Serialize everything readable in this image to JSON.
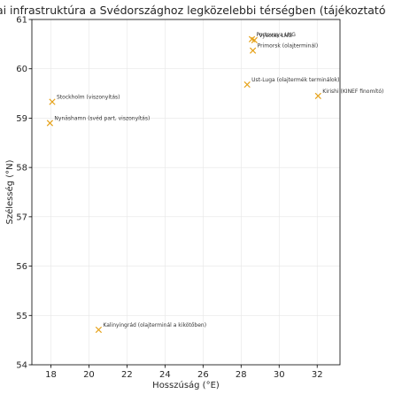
{
  "chart_data": {
    "type": "scatter",
    "title": "giai infrastruktúra a Svédországhoz legközelebbi térségben (tájékoztató",
    "xlabel": "Hosszúság (°E)",
    "ylabel": "Szélesség (°N)",
    "xlim": [
      17.0,
      33.2
    ],
    "ylim": [
      54.0,
      61.0
    ],
    "xticks": [
      18,
      20,
      22,
      24,
      26,
      28,
      30,
      32
    ],
    "yticks": [
      54,
      55,
      56,
      57,
      58,
      59,
      60,
      61
    ],
    "grid": true,
    "marker": "x",
    "marker_color": "#e6a21a",
    "points": [
      {
        "x": 28.7,
        "y": 60.58,
        "label": "Vysotsk LNG"
      },
      {
        "x": 28.57,
        "y": 60.6,
        "label": "Portovaya LNG"
      },
      {
        "x": 28.62,
        "y": 60.37,
        "label": "Primorsk (olajterminál)"
      },
      {
        "x": 28.32,
        "y": 59.68,
        "label": "Ust-Luga (olajtermék terminálok)"
      },
      {
        "x": 32.05,
        "y": 59.45,
        "label": "Kirishi (KINEF finomító)"
      },
      {
        "x": 18.07,
        "y": 59.33,
        "label": "Stockholm (viszonyítás)"
      },
      {
        "x": 17.95,
        "y": 58.9,
        "label": "Nynäshamn (svéd part, viszonyítás)"
      },
      {
        "x": 20.51,
        "y": 54.71,
        "label": "Kalinyingrád (olajterminál a kikötőben)"
      }
    ]
  }
}
